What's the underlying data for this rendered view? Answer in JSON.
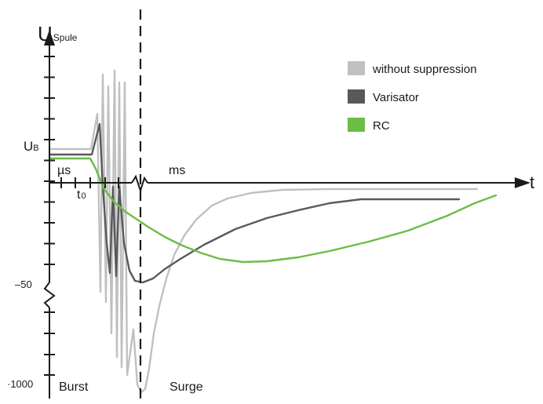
{
  "chart_data": {
    "type": "line",
    "title": "",
    "y_axis_label": {
      "main": "U",
      "sub": "Spule"
    },
    "x_axis_label": "t",
    "annotations": {
      "ub": {
        "main": "U",
        "sub": "B"
      },
      "t0": {
        "main": "t",
        "sub": "0"
      },
      "us": "µs",
      "ms": "ms",
      "burst": "Burst",
      "surge": "Surge"
    },
    "y_ticks": [
      {
        "value": -50,
        "label": "–50"
      },
      {
        "value": -1000,
        "label": "·1000"
      }
    ],
    "legend": {
      "position": "top-right",
      "entries": [
        {
          "name": "without suppression",
          "color": "#c0c0c0"
        },
        {
          "name": "Varisator",
          "color": "#58595b"
        },
        {
          "name": "RC",
          "color": "#6cbd45"
        }
      ]
    },
    "series": [
      {
        "name": "without suppression",
        "color": "#c0c0c0",
        "points": [
          [
            63,
            190
          ],
          [
            116,
            190
          ],
          [
            124,
            145
          ],
          [
            128,
            372
          ],
          [
            131,
            95
          ],
          [
            135,
            385
          ],
          [
            138,
            110
          ],
          [
            142,
            425
          ],
          [
            146,
            90
          ],
          [
            149,
            455
          ],
          [
            152,
            105
          ],
          [
            155,
            468
          ],
          [
            159,
            105
          ],
          [
            162,
            478
          ],
          [
            170,
            420
          ],
          [
            175,
            490
          ],
          [
            180,
            500
          ],
          [
            185,
            496
          ],
          [
            190,
            470
          ],
          [
            196,
            425
          ],
          [
            203,
            390
          ],
          [
            212,
            355
          ],
          [
            222,
            325
          ],
          [
            235,
            300
          ],
          [
            250,
            280
          ],
          [
            270,
            262
          ],
          [
            290,
            253
          ],
          [
            320,
            246
          ],
          [
            360,
            242
          ],
          [
            420,
            241
          ],
          [
            520,
            241
          ],
          [
            608,
            241
          ]
        ]
      },
      {
        "name": "Varisator",
        "color": "#58595b",
        "points": [
          [
            63,
            197
          ],
          [
            117,
            197
          ],
          [
            127,
            158
          ],
          [
            131,
            237
          ],
          [
            136,
            310
          ],
          [
            140,
            348
          ],
          [
            144,
            238
          ],
          [
            148,
            352
          ],
          [
            152,
            238
          ],
          [
            158,
            310
          ],
          [
            165,
            345
          ],
          [
            172,
            358
          ],
          [
            182,
            360
          ],
          [
            195,
            355
          ],
          [
            210,
            343
          ],
          [
            230,
            330
          ],
          [
            260,
            312
          ],
          [
            300,
            292
          ],
          [
            340,
            278
          ],
          [
            380,
            268
          ],
          [
            420,
            259
          ],
          [
            460,
            254
          ],
          [
            520,
            254
          ],
          [
            585,
            254
          ]
        ]
      },
      {
        "name": "RC",
        "color": "#6cbd45",
        "points": [
          [
            63,
            202
          ],
          [
            115,
            202
          ],
          [
            122,
            215
          ],
          [
            132,
            240
          ],
          [
            145,
            257
          ],
          [
            160,
            270
          ],
          [
            175,
            280
          ],
          [
            190,
            290
          ],
          [
            210,
            302
          ],
          [
            230,
            312
          ],
          [
            255,
            322
          ],
          [
            280,
            330
          ],
          [
            310,
            334
          ],
          [
            340,
            333
          ],
          [
            380,
            328
          ],
          [
            420,
            320
          ],
          [
            470,
            308
          ],
          [
            520,
            294
          ],
          [
            570,
            275
          ],
          [
            605,
            259
          ],
          [
            632,
            249
          ]
        ]
      }
    ]
  }
}
